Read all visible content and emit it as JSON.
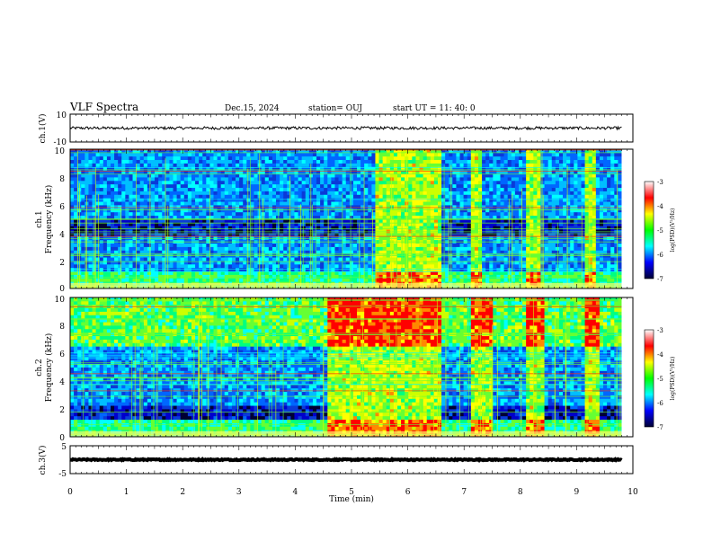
{
  "header": {
    "title": "VLF Spectra",
    "date": "Dec.15, 2024",
    "station": "station= OUJ",
    "start": "start  UT  =   11: 40: 0"
  },
  "chart_data": [
    {
      "type": "line",
      "panel": "ch1-waveform",
      "ylabel": "ch.1(V)",
      "ylim": [
        -10,
        10
      ],
      "y_ticks": [
        "10",
        "-10"
      ],
      "x_range": [
        0,
        9.8
      ],
      "baseline": 0,
      "noise_amplitude": 1
    },
    {
      "type": "heatmap",
      "panel": "ch1-spectrogram",
      "ylabel": [
        "ch.1",
        "Frequency  (kHz)"
      ],
      "ylim": [
        0,
        10
      ],
      "y_ticks": [
        "0",
        "2",
        "4",
        "6",
        "8",
        "10"
      ],
      "x_range": [
        0,
        9.8
      ],
      "colorbar": {
        "label": "log(PSD)(V²/Hz)",
        "range": [
          -7,
          -3
        ],
        "ticks": [
          "-3",
          "-4",
          "-5",
          "-6",
          "-7"
        ],
        "colors": [
          "#ffffff",
          "#ff0000",
          "#ffff00",
          "#00ff00",
          "#00ffff",
          "#0000ff",
          "#000033"
        ]
      },
      "active_intervals_min": [
        [
          5.45,
          6.6
        ],
        [
          7.1,
          7.35
        ],
        [
          8.1,
          8.35
        ],
        [
          9.15,
          9.35
        ]
      ],
      "dark_band_khz": [
        3.8,
        5.1
      ]
    },
    {
      "type": "heatmap",
      "panel": "ch2-spectrogram",
      "ylabel": [
        "ch.2",
        "Frequency  (kHz)"
      ],
      "ylim": [
        0,
        10
      ],
      "y_ticks": [
        "0",
        "2",
        "4",
        "6",
        "8",
        "10"
      ],
      "x_range": [
        0,
        9.8
      ],
      "colorbar": {
        "label": "log(PSD)(V²/Hz)",
        "range": [
          -7,
          -3
        ],
        "ticks": [
          "-3",
          "-4",
          "-5",
          "-6",
          "-7"
        ],
        "colors": [
          "#ffffff",
          "#ff0000",
          "#ffff00",
          "#00ff00",
          "#00ffff",
          "#0000ff",
          "#000033"
        ]
      },
      "active_intervals_min": [
        [
          4.6,
          6.6
        ],
        [
          7.1,
          7.5
        ],
        [
          8.1,
          8.4
        ],
        [
          9.15,
          9.4
        ]
      ],
      "dark_band_khz": [
        1.2,
        2.2
      ]
    },
    {
      "type": "line",
      "panel": "ch3-waveform",
      "ylabel": "ch.3(V)",
      "ylim": [
        -5,
        5
      ],
      "y_ticks": [
        "5",
        "-5"
      ],
      "x_range": [
        0,
        9.8
      ],
      "baseline": 0,
      "noise_amplitude": 0.2
    }
  ],
  "x_axis": {
    "label": "Time  (min)",
    "range": [
      0,
      10
    ],
    "ticks": [
      "0",
      "1",
      "2",
      "3",
      "4",
      "5",
      "6",
      "7",
      "8",
      "9",
      "10"
    ]
  }
}
